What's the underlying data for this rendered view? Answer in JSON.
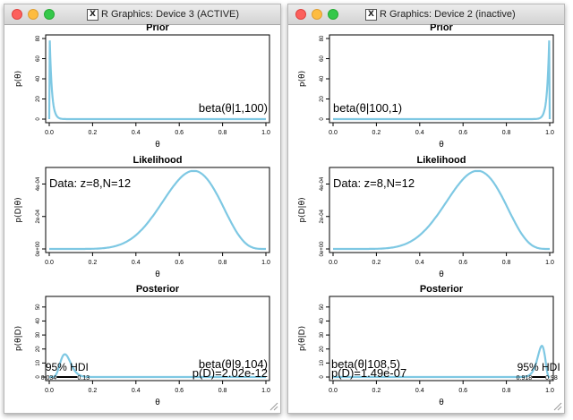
{
  "windows": [
    {
      "title": "R Graphics: Device 3 (ACTIVE)",
      "panels": [
        {
          "title": "Prior",
          "ylabel": "p(θ)",
          "xlabel": "θ",
          "yticks": [
            "0",
            "20",
            "40",
            "60",
            "80"
          ],
          "xticks": [
            "0.0",
            "0.2",
            "0.4",
            "0.6",
            "0.8",
            "1.0"
          ],
          "annotation": "beta(θ|1,100)"
        },
        {
          "title": "Likelihood",
          "ylabel": "p(D|θ)",
          "xlabel": "θ",
          "yticks": [
            "0e+00",
            "2e-04",
            "4e-04"
          ],
          "xticks": [
            "0.0",
            "0.2",
            "0.4",
            "0.6",
            "0.8",
            "1.0"
          ],
          "annotation": "Data: z=8,N=12"
        },
        {
          "title": "Posterior",
          "ylabel": "p(θ|D)",
          "xlabel": "θ",
          "yticks": [
            "0",
            "10",
            "20",
            "30",
            "40",
            "50"
          ],
          "xticks": [
            "0.0",
            "0.2",
            "0.4",
            "0.6",
            "0.8",
            "1.0"
          ],
          "annotation": "beta(θ|9,104)",
          "evidence": "p(D)=2.02e-12",
          "hdi_label": "95% HDI",
          "hdi_low": "0.034",
          "hdi_high": "0.13"
        }
      ]
    },
    {
      "title": "R Graphics: Device 2 (inactive)",
      "panels": [
        {
          "title": "Prior",
          "ylabel": "p(θ)",
          "xlabel": "θ",
          "yticks": [
            "0",
            "20",
            "40",
            "60",
            "80"
          ],
          "xticks": [
            "0.0",
            "0.2",
            "0.4",
            "0.6",
            "0.8",
            "1.0"
          ],
          "annotation": "beta(θ|100,1)"
        },
        {
          "title": "Likelihood",
          "ylabel": "p(D|θ)",
          "xlabel": "θ",
          "yticks": [
            "0e+00",
            "2e-04",
            "4e-04"
          ],
          "xticks": [
            "0.0",
            "0.2",
            "0.4",
            "0.6",
            "0.8",
            "1.0"
          ],
          "annotation": "Data: z=8,N=12"
        },
        {
          "title": "Posterior",
          "ylabel": "p(θ|D)",
          "xlabel": "θ",
          "yticks": [
            "0",
            "10",
            "20",
            "30",
            "40",
            "50"
          ],
          "xticks": [
            "0.0",
            "0.2",
            "0.4",
            "0.6",
            "0.8",
            "1.0"
          ],
          "annotation": "beta(θ|108,5)",
          "evidence": "p(D)=1.49e-07",
          "hdi_label": "95% HDI",
          "hdi_low": "0.918",
          "hdi_high": "0.98"
        }
      ]
    }
  ],
  "colors": {
    "curve": "#7ec8e3",
    "axis": "#000000"
  },
  "chart_data": [
    {
      "type": "line",
      "title": "Prior",
      "xlabel": "θ",
      "ylabel": "p(θ)",
      "xlim": [
        0,
        1
      ],
      "ylim": [
        0,
        80
      ],
      "dist": "beta",
      "a": 1,
      "b": 100
    },
    {
      "type": "line",
      "title": "Likelihood",
      "xlabel": "θ",
      "ylabel": "p(D|θ)",
      "xlim": [
        0,
        1
      ],
      "ylim": [
        0,
        0.00048
      ],
      "z": 8,
      "N": 12
    },
    {
      "type": "line",
      "title": "Posterior",
      "xlabel": "θ",
      "ylabel": "p(θ|D)",
      "xlim": [
        0,
        1
      ],
      "ylim": [
        0,
        55
      ],
      "dist": "beta",
      "a": 9,
      "b": 104
    },
    {
      "type": "line",
      "title": "Prior",
      "xlabel": "θ",
      "ylabel": "p(θ)",
      "xlim": [
        0,
        1
      ],
      "ylim": [
        0,
        80
      ],
      "dist": "beta",
      "a": 100,
      "b": 1
    },
    {
      "type": "line",
      "title": "Likelihood",
      "xlabel": "θ",
      "ylabel": "p(D|θ)",
      "xlim": [
        0,
        1
      ],
      "ylim": [
        0,
        0.00048
      ],
      "z": 8,
      "N": 12
    },
    {
      "type": "line",
      "title": "Posterior",
      "xlabel": "θ",
      "ylabel": "p(θ|D)",
      "xlim": [
        0,
        1
      ],
      "ylim": [
        0,
        55
      ],
      "dist": "beta",
      "a": 108,
      "b": 5
    }
  ]
}
